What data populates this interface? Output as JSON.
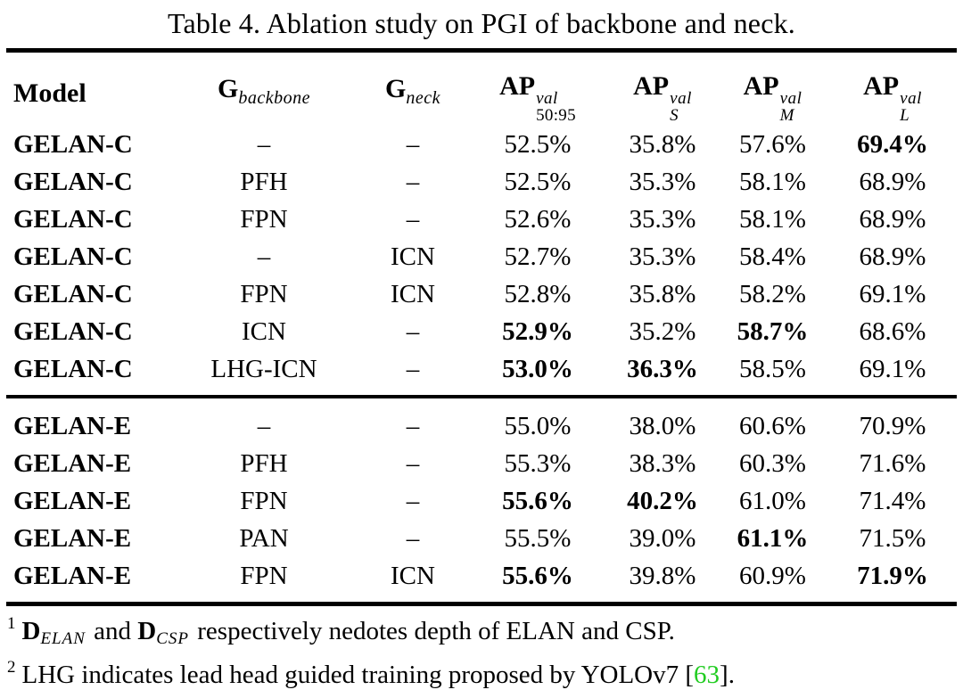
{
  "title": "Table 4. Ablation study on PGI of backbone and neck.",
  "colors": {
    "citation_green": "#22cc22",
    "text": "#000000",
    "background": "#ffffff"
  },
  "table": {
    "headers": {
      "model": "Model",
      "g_backbone": {
        "base": "G",
        "sub": "backbone"
      },
      "g_neck": {
        "base": "G",
        "sub": "neck"
      },
      "ap_50_95": {
        "base": "AP",
        "sup": "val",
        "sub": "50:95"
      },
      "ap_s": {
        "base": "AP",
        "sup": "val",
        "sub": "S"
      },
      "ap_m": {
        "base": "AP",
        "sup": "val",
        "sub": "M"
      },
      "ap_l": {
        "base": "AP",
        "sup": "val",
        "sub": "L"
      }
    },
    "sections": [
      {
        "rows": [
          {
            "model": "GELAN-C",
            "backbone": "–",
            "neck": "–",
            "ap50_95": "52.5%",
            "ap_s": "35.8%",
            "ap_m": "57.6%",
            "ap_l": "69.4%"
          },
          {
            "model": "GELAN-C",
            "backbone": "PFH",
            "neck": "–",
            "ap50_95": "52.5%",
            "ap_s": "35.3%",
            "ap_m": "58.1%",
            "ap_l": "68.9%"
          },
          {
            "model": "GELAN-C",
            "backbone": "FPN",
            "neck": "–",
            "ap50_95": "52.6%",
            "ap_s": "35.3%",
            "ap_m": "58.1%",
            "ap_l": "68.9%"
          },
          {
            "model": "GELAN-C",
            "backbone": "–",
            "neck": "ICN",
            "ap50_95": "52.7%",
            "ap_s": "35.3%",
            "ap_m": "58.4%",
            "ap_l": "68.9%"
          },
          {
            "model": "GELAN-C",
            "backbone": "FPN",
            "neck": "ICN",
            "ap50_95": "52.8%",
            "ap_s": "35.8%",
            "ap_m": "58.2%",
            "ap_l": "69.1%"
          },
          {
            "model": "GELAN-C",
            "backbone": "ICN",
            "neck": "–",
            "ap50_95": "52.9%",
            "ap_s": "35.2%",
            "ap_m": "58.7%",
            "ap_l": "68.6%"
          },
          {
            "model": "GELAN-C",
            "backbone": "LHG-ICN",
            "neck": "–",
            "ap50_95": "53.0%",
            "ap_s": "36.3%",
            "ap_m": "58.5%",
            "ap_l": "69.1%"
          }
        ]
      },
      {
        "rows": [
          {
            "model": "GELAN-E",
            "backbone": "–",
            "neck": "–",
            "ap50_95": "55.0%",
            "ap_s": "38.0%",
            "ap_m": "60.6%",
            "ap_l": "70.9%"
          },
          {
            "model": "GELAN-E",
            "backbone": "PFH",
            "neck": "–",
            "ap50_95": "55.3%",
            "ap_s": "38.3%",
            "ap_m": "60.3%",
            "ap_l": "71.6%"
          },
          {
            "model": "GELAN-E",
            "backbone": "FPN",
            "neck": "–",
            "ap50_95": "55.6%",
            "ap_s": "40.2%",
            "ap_m": "61.0%",
            "ap_l": "71.4%"
          },
          {
            "model": "GELAN-E",
            "backbone": "PAN",
            "neck": "–",
            "ap50_95": "55.5%",
            "ap_s": "39.0%",
            "ap_m": "61.1%",
            "ap_l": "71.5%"
          },
          {
            "model": "GELAN-E",
            "backbone": "FPN",
            "neck": "ICN",
            "ap50_95": "55.6%",
            "ap_s": "39.8%",
            "ap_m": "60.9%",
            "ap_l": "71.9%"
          }
        ]
      }
    ]
  },
  "footnotes": {
    "fn1": {
      "marker": "1",
      "d1_base": "D",
      "d1_sub": "ELAN",
      "mid": " and ",
      "d2_base": "D",
      "d2_sub": "CSP",
      "rest": " respectively nedotes depth of ELAN and CSP."
    },
    "fn2": {
      "marker": "2",
      "pre": "LHG indicates lead head guided training proposed by YOLOv7 [",
      "cite": "63",
      "post": "]."
    }
  }
}
